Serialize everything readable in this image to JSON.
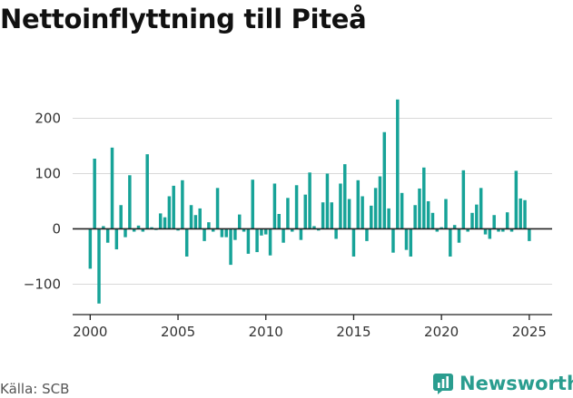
{
  "header": {
    "title": "Nettoinflyttning till Piteå"
  },
  "footer": {
    "source": "Källa: SCB",
    "brand": "Newsworthy"
  },
  "colors": {
    "bar": "#17a398",
    "brand": "#2a9d8f",
    "grid": "#d9d9d9",
    "axis": "#222222"
  },
  "chart_data": {
    "type": "bar",
    "title": "Nettoinflyttning till Piteå",
    "xlabel": "",
    "ylabel": "",
    "frequency": "quarterly",
    "start": "2000 Q1",
    "xlim": [
      1999.0,
      2026.3
    ],
    "ylim": [
      -155,
      250
    ],
    "yticks": [
      -100,
      0,
      100,
      200
    ],
    "ytick_labels": [
      "−100",
      "0",
      "100",
      "200"
    ],
    "xticks": [
      2000,
      2005,
      2010,
      2015,
      2020,
      2025
    ],
    "xtick_labels": [
      "2000",
      "2005",
      "2010",
      "2015",
      "2020",
      "2025"
    ],
    "grid": true,
    "values": [
      -72,
      127,
      -135,
      5,
      -25,
      147,
      -37,
      43,
      -15,
      97,
      -5,
      6,
      -5,
      135,
      3,
      -2,
      28,
      21,
      59,
      78,
      -3,
      88,
      -50,
      43,
      25,
      37,
      -22,
      12,
      -5,
      74,
      -15,
      -15,
      -65,
      -20,
      26,
      -5,
      -45,
      89,
      -42,
      -12,
      -10,
      -48,
      82,
      27,
      -25,
      56,
      -5,
      79,
      -20,
      62,
      102,
      5,
      -3,
      48,
      100,
      48,
      -18,
      82,
      117,
      54,
      -50,
      88,
      59,
      -22,
      42,
      74,
      95,
      175,
      37,
      -43,
      234,
      65,
      -38,
      -50,
      43,
      73,
      111,
      50,
      29,
      -5,
      3,
      54,
      -50,
      7,
      -25,
      106,
      -5,
      29,
      44,
      74,
      -10,
      -18,
      25,
      -5,
      -5,
      30,
      -5,
      105,
      55,
      52,
      -22
    ]
  }
}
